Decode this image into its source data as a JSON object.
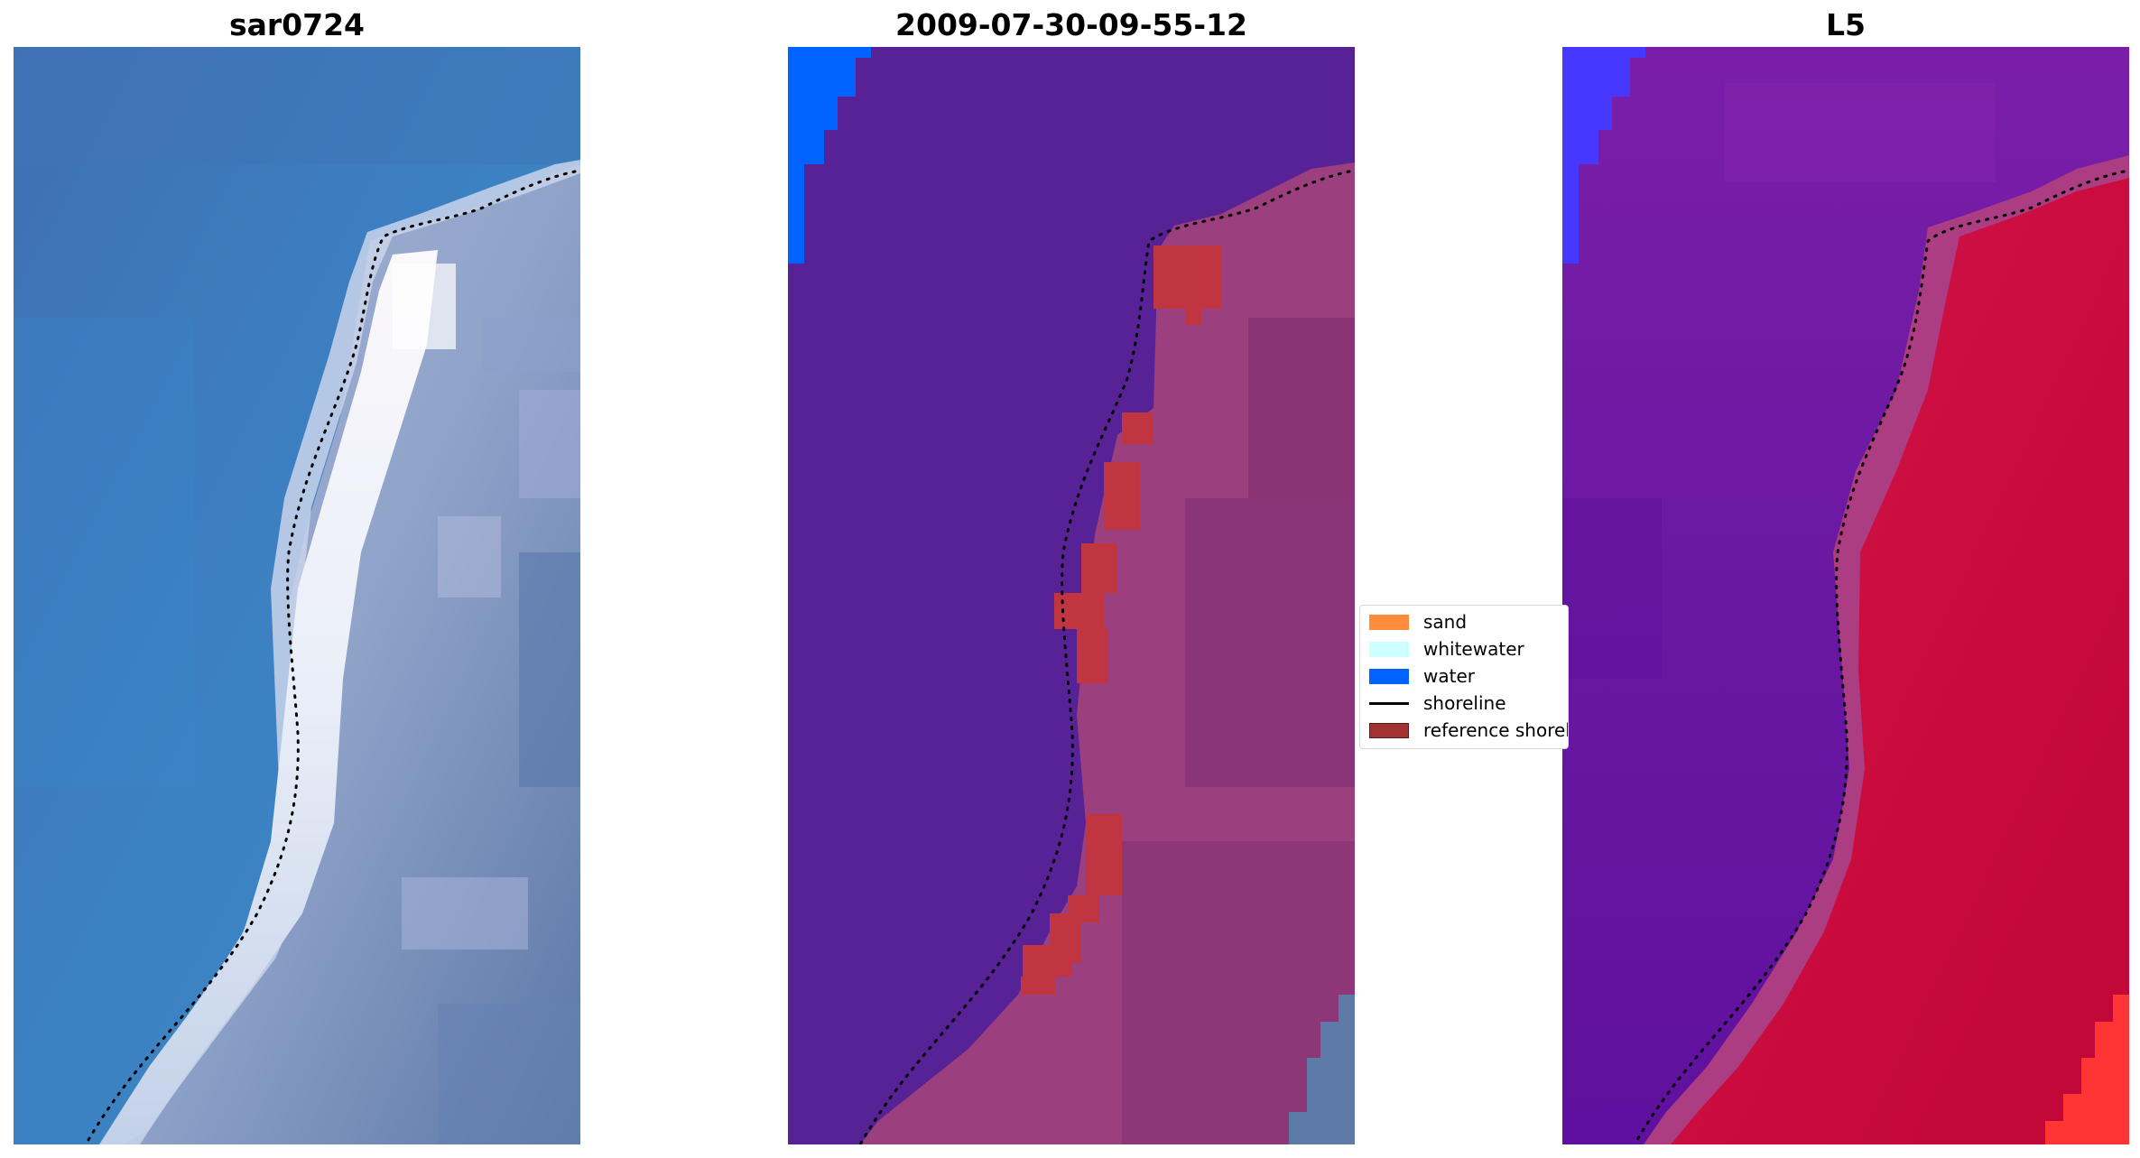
{
  "panels": [
    {
      "title": "sar0724",
      "kind": "rgb-image"
    },
    {
      "title": "2009-07-30-09-55-12",
      "kind": "classified-image"
    },
    {
      "title": "L5",
      "kind": "index-image"
    }
  ],
  "legend": {
    "items": [
      {
        "label": "sand",
        "color": "#ff8c3a",
        "type": "patch"
      },
      {
        "label": "whitewater",
        "color": "#ccffff",
        "type": "patch"
      },
      {
        "label": "water",
        "color": "#0062ff",
        "type": "patch"
      },
      {
        "label": "shoreline",
        "color": "#000000",
        "type": "line"
      },
      {
        "label": "reference shoreline",
        "color": "#a33333",
        "type": "patch"
      }
    ]
  },
  "colors": {
    "sea_blue": "#3d78b8",
    "surf_white": "#eef1f8",
    "land_slate": "#6f86ad",
    "class_water_purple": "#562295",
    "class_land_pink": "#9b3f7f",
    "class_reference_red": "#c0353f",
    "class_water_blue": "#0062ff",
    "index_low_purple": "#6a16a0",
    "index_high_red": "#cc0a3c",
    "index_edge_blue": "#4638ff",
    "index_corner_red": "#ff3535",
    "shoreline_dots": "#000000"
  }
}
